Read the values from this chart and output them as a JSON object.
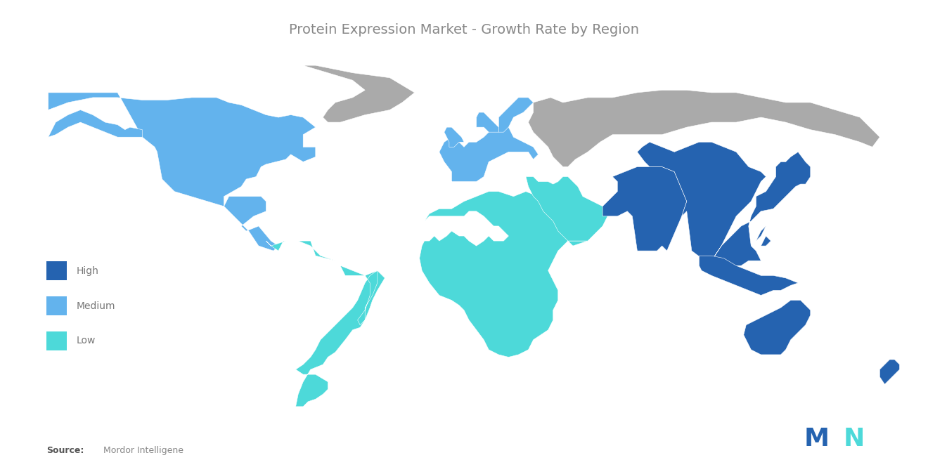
{
  "title": "Protein Expression Market - Growth Rate by Region",
  "title_color": "#888888",
  "title_fontsize": 14,
  "background_color": "#ffffff",
  "legend_items": [
    {
      "label": "High",
      "color": "#2563b0"
    },
    {
      "label": "Medium",
      "color": "#63b3ed"
    },
    {
      "label": "Low",
      "color": "#4dd9d9"
    }
  ],
  "source_bold": "Source:",
  "source_text": "  Mordor Intelligene",
  "source_color": "#888888",
  "source_bold_color": "#555555",
  "gray_color": "#aaaaaa",
  "ocean_color": "#ffffff",
  "mordor_logo_colors": [
    "#2563b0",
    "#4dd9d9"
  ]
}
